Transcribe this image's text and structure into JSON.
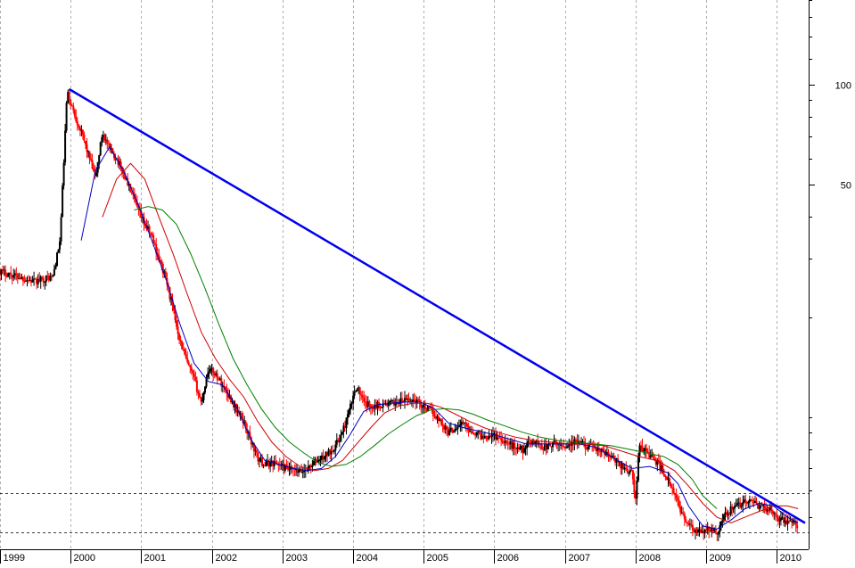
{
  "chart_data": {
    "type": "candlestick",
    "title": "",
    "xlabel": "",
    "ylabel": "",
    "y_scale": "log",
    "ylim": [
      4,
      180
    ],
    "xlim": [
      1999.0,
      2010.45
    ],
    "grid": true,
    "x_tick_labels": [
      "1999",
      "2000",
      "2001",
      "2002",
      "2003",
      "2004",
      "2005",
      "2006",
      "2007",
      "2008",
      "2009",
      "2010"
    ],
    "x_ticks": [
      1999.0,
      2000.0,
      2001.0,
      2002.0,
      2003.0,
      2004.0,
      2005.0,
      2006.0,
      2007.0,
      2008.0,
      2009.0,
      2010.0
    ],
    "y_tick_labels": [
      "100",
      "50"
    ],
    "y_ticks": [
      100,
      50
    ],
    "y_minor_ticks": [
      180,
      160,
      140,
      120,
      90,
      80,
      70,
      60,
      40,
      30,
      20,
      10,
      9,
      8,
      7,
      6,
      5
    ],
    "colors": {
      "up": "#000000",
      "down": "#ff0000",
      "ma_short": "#0000c0",
      "ma_mid": "#d00000",
      "ma_long": "#008000",
      "trendline": "#0000ee",
      "grid": "#b0b0b0",
      "support": "#000000"
    },
    "price_path": [
      [
        1999.0,
        27.5
      ],
      [
        1999.25,
        26.5
      ],
      [
        1999.5,
        25.5
      ],
      [
        1999.6,
        26.0
      ],
      [
        1999.75,
        26.5
      ],
      [
        1999.85,
        34.0
      ],
      [
        1999.95,
        95.0
      ],
      [
        2000.05,
        82.0
      ],
      [
        2000.15,
        72.0
      ],
      [
        2000.25,
        62.0
      ],
      [
        2000.35,
        52.0
      ],
      [
        2000.45,
        72.0
      ],
      [
        2000.55,
        64.0
      ],
      [
        2000.65,
        60.0
      ],
      [
        2000.75,
        54.0
      ],
      [
        2000.85,
        48.0
      ],
      [
        2000.95,
        42.0
      ],
      [
        2001.05,
        38.0
      ],
      [
        2001.15,
        35.0
      ],
      [
        2001.25,
        30.0
      ],
      [
        2001.35,
        26.0
      ],
      [
        2001.45,
        21.0
      ],
      [
        2001.55,
        17.0
      ],
      [
        2001.65,
        14.5
      ],
      [
        2001.75,
        13.0
      ],
      [
        2001.85,
        11.0
      ],
      [
        2001.95,
        14.0
      ],
      [
        2002.05,
        13.5
      ],
      [
        2002.15,
        12.5
      ],
      [
        2002.25,
        11.5
      ],
      [
        2002.35,
        10.5
      ],
      [
        2002.45,
        9.7
      ],
      [
        2002.55,
        8.5
      ],
      [
        2002.65,
        7.5
      ],
      [
        2002.75,
        7.2
      ],
      [
        2002.85,
        7.3
      ],
      [
        2002.95,
        7.2
      ],
      [
        2003.05,
        7.0
      ],
      [
        2003.15,
        6.9
      ],
      [
        2003.25,
        6.8
      ],
      [
        2003.35,
        7.0
      ],
      [
        2003.45,
        7.3
      ],
      [
        2003.55,
        7.5
      ],
      [
        2003.65,
        7.8
      ],
      [
        2003.75,
        8.2
      ],
      [
        2003.85,
        9.0
      ],
      [
        2003.95,
        10.5
      ],
      [
        2004.05,
        12.5
      ],
      [
        2004.15,
        11.0
      ],
      [
        2004.25,
        10.8
      ],
      [
        2004.4,
        10.9
      ],
      [
        2004.55,
        11.0
      ],
      [
        2004.7,
        11.2
      ],
      [
        2004.85,
        11.3
      ],
      [
        2004.95,
        11.0
      ],
      [
        2005.05,
        10.6
      ],
      [
        2005.15,
        10.2
      ],
      [
        2005.25,
        9.6
      ],
      [
        2005.35,
        9.0
      ],
      [
        2005.45,
        9.3
      ],
      [
        2005.55,
        9.6
      ],
      [
        2005.65,
        9.2
      ],
      [
        2005.75,
        8.9
      ],
      [
        2005.85,
        8.7
      ],
      [
        2005.95,
        8.9
      ],
      [
        2006.1,
        8.6
      ],
      [
        2006.25,
        8.2
      ],
      [
        2006.4,
        8.0
      ],
      [
        2006.55,
        8.5
      ],
      [
        2006.7,
        8.1
      ],
      [
        2006.85,
        8.3
      ],
      [
        2007.0,
        8.2
      ],
      [
        2007.15,
        8.4
      ],
      [
        2007.3,
        8.2
      ],
      [
        2007.45,
        8.0
      ],
      [
        2007.6,
        7.7
      ],
      [
        2007.75,
        7.3
      ],
      [
        2007.85,
        7.0
      ],
      [
        2007.95,
        6.8
      ],
      [
        2008.0,
        5.6
      ],
      [
        2008.05,
        8.2
      ],
      [
        2008.15,
        7.9
      ],
      [
        2008.25,
        7.5
      ],
      [
        2008.35,
        7.1
      ],
      [
        2008.45,
        6.5
      ],
      [
        2008.55,
        5.8
      ],
      [
        2008.65,
        5.2
      ],
      [
        2008.75,
        4.7
      ],
      [
        2008.85,
        4.5
      ],
      [
        2008.95,
        4.5
      ],
      [
        2009.05,
        4.6
      ],
      [
        2009.15,
        4.5
      ],
      [
        2009.25,
        5.0
      ],
      [
        2009.35,
        5.3
      ],
      [
        2009.45,
        5.4
      ],
      [
        2009.55,
        5.6
      ],
      [
        2009.65,
        5.5
      ],
      [
        2009.75,
        5.4
      ],
      [
        2009.85,
        5.3
      ],
      [
        2009.95,
        5.2
      ],
      [
        2010.05,
        4.9
      ],
      [
        2010.15,
        4.85
      ],
      [
        2010.25,
        4.8
      ],
      [
        2010.3,
        4.5
      ]
    ],
    "moving_averages": [
      {
        "key": "ma_short",
        "points": [
          [
            2000.15,
            34.0
          ],
          [
            2000.35,
            55.0
          ],
          [
            2000.55,
            65.0
          ],
          [
            2000.75,
            55.0
          ],
          [
            2000.95,
            44.0
          ],
          [
            2001.15,
            34.0
          ],
          [
            2001.35,
            26.0
          ],
          [
            2001.55,
            19.0
          ],
          [
            2001.75,
            14.5
          ],
          [
            2001.95,
            12.8
          ],
          [
            2002.15,
            12.5
          ],
          [
            2002.35,
            10.7
          ],
          [
            2002.55,
            8.6
          ],
          [
            2002.75,
            7.4
          ],
          [
            2002.95,
            7.2
          ],
          [
            2003.15,
            7.0
          ],
          [
            2003.35,
            6.9
          ],
          [
            2003.55,
            7.0
          ],
          [
            2003.75,
            7.6
          ],
          [
            2003.95,
            8.8
          ],
          [
            2004.15,
            10.4
          ],
          [
            2004.35,
            10.9
          ],
          [
            2004.55,
            11.0
          ],
          [
            2004.75,
            11.1
          ],
          [
            2004.95,
            11.1
          ],
          [
            2005.15,
            10.6
          ],
          [
            2005.35,
            9.6
          ],
          [
            2005.55,
            9.3
          ],
          [
            2005.75,
            9.1
          ],
          [
            2005.95,
            8.9
          ],
          [
            2006.2,
            8.6
          ],
          [
            2006.45,
            8.3
          ],
          [
            2006.7,
            8.3
          ],
          [
            2006.95,
            8.3
          ],
          [
            2007.2,
            8.3
          ],
          [
            2007.45,
            8.1
          ],
          [
            2007.7,
            7.5
          ],
          [
            2007.95,
            7.0
          ],
          [
            2008.2,
            7.1
          ],
          [
            2008.45,
            6.8
          ],
          [
            2008.6,
            6.3
          ],
          [
            2008.75,
            5.4
          ],
          [
            2008.95,
            4.7
          ],
          [
            2009.15,
            4.6
          ],
          [
            2009.35,
            4.9
          ],
          [
            2009.55,
            5.3
          ],
          [
            2009.75,
            5.5
          ],
          [
            2009.95,
            5.4
          ],
          [
            2010.15,
            5.0
          ],
          [
            2010.3,
            4.8
          ]
        ]
      },
      {
        "key": "ma_mid",
        "points": [
          [
            2000.45,
            40.0
          ],
          [
            2000.65,
            52.0
          ],
          [
            2000.85,
            58.0
          ],
          [
            2001.05,
            52.0
          ],
          [
            2001.25,
            40.0
          ],
          [
            2001.45,
            31.0
          ],
          [
            2001.65,
            23.5
          ],
          [
            2001.85,
            18.0
          ],
          [
            2002.05,
            15.0
          ],
          [
            2002.25,
            13.0
          ],
          [
            2002.45,
            11.5
          ],
          [
            2002.65,
            9.7
          ],
          [
            2002.85,
            8.4
          ],
          [
            2003.05,
            7.6
          ],
          [
            2003.25,
            7.1
          ],
          [
            2003.45,
            6.9
          ],
          [
            2003.65,
            7.0
          ],
          [
            2003.85,
            7.4
          ],
          [
            2004.05,
            8.3
          ],
          [
            2004.25,
            9.3
          ],
          [
            2004.45,
            10.3
          ],
          [
            2004.65,
            10.8
          ],
          [
            2004.85,
            11.0
          ],
          [
            2005.05,
            11.0
          ],
          [
            2005.25,
            10.7
          ],
          [
            2005.45,
            10.2
          ],
          [
            2005.65,
            9.7
          ],
          [
            2005.85,
            9.3
          ],
          [
            2006.05,
            9.0
          ],
          [
            2006.3,
            8.7
          ],
          [
            2006.55,
            8.5
          ],
          [
            2006.8,
            8.4
          ],
          [
            2007.05,
            8.3
          ],
          [
            2007.3,
            8.3
          ],
          [
            2007.55,
            8.2
          ],
          [
            2007.8,
            7.9
          ],
          [
            2008.05,
            7.6
          ],
          [
            2008.3,
            7.4
          ],
          [
            2008.55,
            6.9
          ],
          [
            2008.75,
            6.2
          ],
          [
            2008.95,
            5.5
          ],
          [
            2009.15,
            5.0
          ],
          [
            2009.35,
            4.8
          ],
          [
            2009.55,
            5.0
          ],
          [
            2009.75,
            5.2
          ],
          [
            2009.95,
            5.4
          ],
          [
            2010.15,
            5.4
          ],
          [
            2010.3,
            5.3
          ]
        ]
      },
      {
        "key": "ma_long",
        "points": [
          [
            2000.9,
            42.0
          ],
          [
            2001.1,
            43.0
          ],
          [
            2001.3,
            42.0
          ],
          [
            2001.5,
            38.0
          ],
          [
            2001.7,
            31.0
          ],
          [
            2001.9,
            24.5
          ],
          [
            2002.1,
            19.0
          ],
          [
            2002.3,
            15.0
          ],
          [
            2002.5,
            12.5
          ],
          [
            2002.7,
            10.6
          ],
          [
            2002.9,
            9.3
          ],
          [
            2003.1,
            8.4
          ],
          [
            2003.3,
            7.8
          ],
          [
            2003.5,
            7.3
          ],
          [
            2003.7,
            7.1
          ],
          [
            2003.9,
            7.2
          ],
          [
            2004.1,
            7.6
          ],
          [
            2004.3,
            8.2
          ],
          [
            2004.5,
            8.9
          ],
          [
            2004.7,
            9.5
          ],
          [
            2004.9,
            10.1
          ],
          [
            2005.1,
            10.5
          ],
          [
            2005.3,
            10.6
          ],
          [
            2005.5,
            10.5
          ],
          [
            2005.7,
            10.2
          ],
          [
            2005.9,
            9.8
          ],
          [
            2006.15,
            9.4
          ],
          [
            2006.4,
            9.0
          ],
          [
            2006.65,
            8.7
          ],
          [
            2006.9,
            8.5
          ],
          [
            2007.15,
            8.4
          ],
          [
            2007.4,
            8.3
          ],
          [
            2007.65,
            8.2
          ],
          [
            2007.9,
            8.0
          ],
          [
            2008.15,
            7.8
          ],
          [
            2008.4,
            7.6
          ],
          [
            2008.6,
            7.2
          ],
          [
            2008.8,
            6.5
          ],
          [
            2008.95,
            5.8
          ],
          [
            2009.15,
            5.3
          ]
        ]
      }
    ],
    "trendline": [
      [
        1999.98,
        97.0
      ],
      [
        2010.4,
        4.8
      ]
    ],
    "support_lines": [
      5.9,
      4.5
    ]
  }
}
